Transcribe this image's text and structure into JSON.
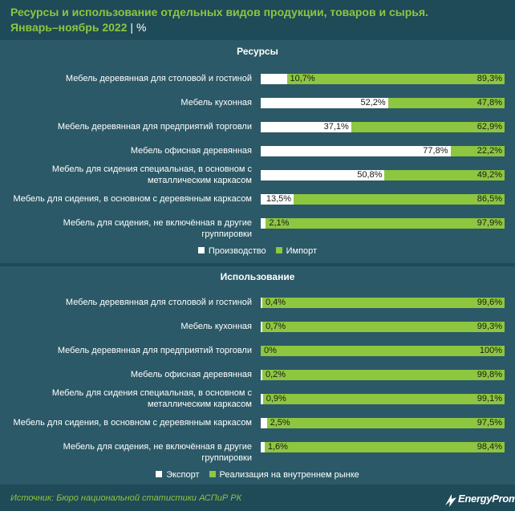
{
  "header": {
    "title_line1": "Ресурсы и использование отдельных видов продукции, товаров и сырья.",
    "title_line2": "Январь–ноябрь 2022",
    "separator": "|",
    "unit": "%"
  },
  "colors": {
    "background": "#1f4a58",
    "panel": "#2b5967",
    "first_series": "#ffffff",
    "second_series": "#8dc63f",
    "title": "#8dc63f"
  },
  "chart_data": [
    {
      "type": "bar",
      "orientation": "horizontal",
      "stacked": "100%",
      "title": "Ресурсы",
      "categories": [
        "Мебель деревянная для столовой и гостиной",
        "Мебель кухонная",
        "Мебель деревянная для предприятий торговли",
        "Мебель офисная деревянная",
        "Мебель для сидения специальная, в основном с металлическим каркасом",
        "Мебель для сидения, в основном с деревянным каркасом",
        "Мебель для сидения, не включённая в другие группировки"
      ],
      "series": [
        {
          "name": "Производство",
          "values": [
            10.7,
            52.2,
            37.1,
            77.8,
            50.8,
            13.5,
            2.1
          ],
          "labels": [
            "10,7%",
            "52,2%",
            "37,1%",
            "77,8%",
            "50,8%",
            "13,5%",
            "2,1%"
          ]
        },
        {
          "name": "Импорт",
          "values": [
            89.3,
            47.8,
            62.9,
            22.2,
            49.2,
            86.5,
            97.9
          ],
          "labels": [
            "89,3%",
            "47,8%",
            "62,9%",
            "22,2%",
            "49,2%",
            "86,5%",
            "97,9%"
          ]
        }
      ],
      "legend": "bottom-center",
      "xlim": [
        0,
        100
      ]
    },
    {
      "type": "bar",
      "orientation": "horizontal",
      "stacked": "100%",
      "title": "Использование",
      "categories": [
        "Мебель деревянная для столовой и гостиной",
        "Мебель кухонная",
        "Мебель деревянная для предприятий торговли",
        "Мебель офисная деревянная",
        "Мебель для сидения специальная, в основном с металлическим каркасом",
        "Мебель для сидения, в основном с деревянным каркасом",
        "Мебель для сидения, не включённая в другие группировки"
      ],
      "series": [
        {
          "name": "Экспорт",
          "values": [
            0.4,
            0.7,
            0,
            0.2,
            0.9,
            2.5,
            1.6
          ],
          "labels": [
            "0,4%",
            "0,7%",
            "0%",
            "0,2%",
            "0,9%",
            "2,5%",
            "1,6%"
          ]
        },
        {
          "name": "Реализация на внутреннем рынке",
          "values": [
            99.6,
            99.3,
            100,
            99.8,
            99.1,
            97.5,
            98.4
          ],
          "labels": [
            "99,6%",
            "99,3%",
            "100%",
            "99,8%",
            "99,1%",
            "97,5%",
            "98,4%"
          ]
        }
      ],
      "legend": "bottom-center",
      "xlim": [
        0,
        100
      ]
    }
  ],
  "footer": {
    "source": "Источник: Бюро национальной статистики АСПиР РК",
    "logo_text": "EnergyProm",
    "logo_icon": "lightning-bolt-icon"
  }
}
